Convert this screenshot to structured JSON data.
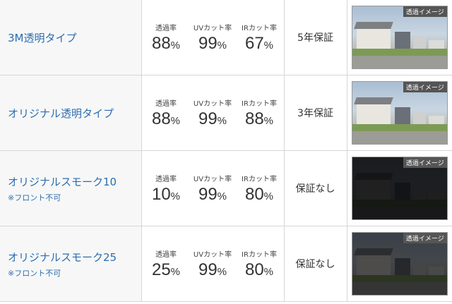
{
  "labels": {
    "transmittance": "透過率",
    "uv": "UVカット率",
    "ir": "IRカット率",
    "pct": "%",
    "image_badge": "透過イメージ"
  },
  "rows": [
    {
      "name": "3M透明タイプ",
      "note": "",
      "transmittance": "88",
      "uv": "99",
      "ir": "67",
      "warranty": "5年保証",
      "darkness": 0
    },
    {
      "name": "オリジナル透明タイプ",
      "note": "",
      "transmittance": "88",
      "uv": "99",
      "ir": "88",
      "warranty": "3年保証",
      "darkness": 0
    },
    {
      "name": "オリジナルスモーク10",
      "note": "※フロント不可",
      "transmittance": "10",
      "uv": "99",
      "ir": "80",
      "warranty": "保証なし",
      "darkness": 0.9
    },
    {
      "name": "オリジナルスモーク25",
      "note": "※フロント不可",
      "transmittance": "25",
      "uv": "99",
      "ir": "80",
      "warranty": "保証なし",
      "darkness": 0.7
    }
  ]
}
